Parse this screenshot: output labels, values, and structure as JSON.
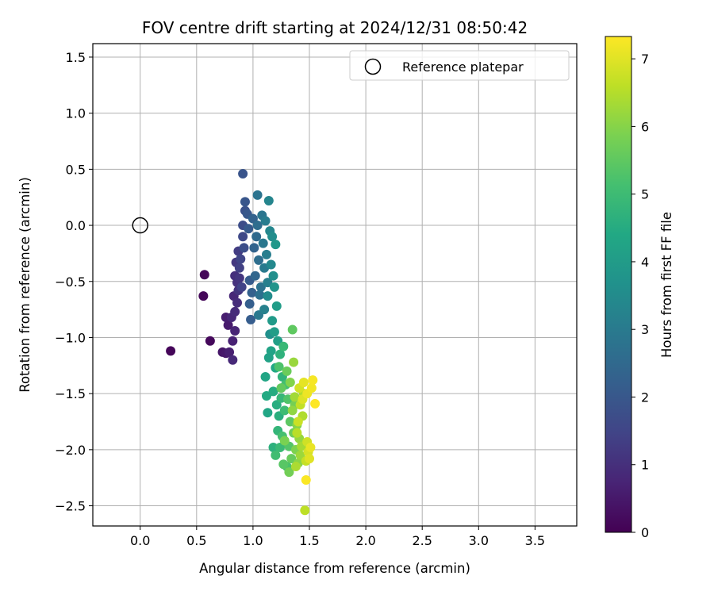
{
  "chart_data": {
    "type": "scatter",
    "title": "FOV centre drift starting at 2024/12/31 08:50:42",
    "xlabel": "Angular distance from reference (arcmin)",
    "ylabel": "Rotation from reference (arcmin)",
    "xlim": [
      -0.42,
      3.87
    ],
    "ylim": [
      -2.68,
      1.62
    ],
    "xticks": [
      0.0,
      0.5,
      1.0,
      1.5,
      2.0,
      2.5,
      3.0,
      3.5
    ],
    "xtick_labels": [
      "0.0",
      "0.5",
      "1.0",
      "1.5",
      "2.0",
      "2.5",
      "3.0",
      "3.5"
    ],
    "yticks": [
      1.5,
      1.0,
      0.5,
      0.0,
      -0.5,
      -1.0,
      -1.5,
      -2.0,
      -2.5
    ],
    "ytick_labels": [
      "1.5",
      "1.0",
      "0.5",
      "0.0",
      "−0.5",
      "−1.0",
      "−1.5",
      "−2.0",
      "−2.5"
    ],
    "grid": true,
    "legend": {
      "position": "top-right",
      "entries": [
        "Reference platepar"
      ]
    },
    "reference_point": {
      "x": 0.0,
      "y": 0.0,
      "marker": "open-circle"
    },
    "colorbar": {
      "label": "Hours from first FF file",
      "colormap": "viridis",
      "range": [
        0,
        7.33
      ],
      "ticks": [
        0,
        1,
        2,
        3,
        4,
        5,
        6,
        7
      ],
      "tick_labels": [
        "0",
        "1",
        "2",
        "3",
        "4",
        "5",
        "6",
        "7"
      ]
    },
    "points": [
      [
        0.27,
        -1.12,
        0.1
      ],
      [
        0.57,
        -0.44,
        0.1
      ],
      [
        0.56,
        -0.63,
        0.12
      ],
      [
        0.62,
        -1.03,
        0.15
      ],
      [
        0.73,
        -1.13,
        0.45
      ],
      [
        0.76,
        -1.14,
        0.5
      ],
      [
        0.78,
        -0.89,
        0.55
      ],
      [
        0.76,
        -0.82,
        0.6
      ],
      [
        0.79,
        -1.13,
        0.65
      ],
      [
        0.82,
        -1.03,
        0.7
      ],
      [
        0.84,
        -0.94,
        0.75
      ],
      [
        0.81,
        -0.82,
        0.8
      ],
      [
        0.83,
        -0.63,
        0.8
      ],
      [
        0.82,
        -1.2,
        0.85
      ],
      [
        0.84,
        -0.77,
        0.9
      ],
      [
        0.86,
        -0.69,
        0.95
      ],
      [
        0.84,
        -0.45,
        1.0
      ],
      [
        0.86,
        -0.51,
        1.05
      ],
      [
        0.87,
        -0.58,
        1.1
      ],
      [
        0.88,
        -0.47,
        1.15
      ],
      [
        0.85,
        -0.33,
        1.2
      ],
      [
        0.87,
        -0.23,
        1.3
      ],
      [
        0.88,
        -0.38,
        1.4
      ],
      [
        0.9,
        -0.55,
        1.45
      ],
      [
        0.89,
        -0.3,
        1.5
      ],
      [
        0.91,
        -0.1,
        1.6
      ],
      [
        0.91,
        0.0,
        1.7
      ],
      [
        0.92,
        -0.2,
        1.75
      ],
      [
        0.93,
        0.13,
        1.85
      ],
      [
        0.91,
        0.46,
        1.9
      ],
      [
        0.93,
        0.21,
        1.95
      ],
      [
        0.95,
        0.1,
        2.0
      ],
      [
        0.96,
        -0.03,
        2.05
      ],
      [
        0.97,
        -0.49,
        2.1
      ],
      [
        0.98,
        -0.84,
        2.15
      ],
      [
        0.97,
        -0.7,
        2.2
      ],
      [
        0.99,
        -0.6,
        2.25
      ],
      [
        1.0,
        0.06,
        2.3
      ],
      [
        1.01,
        -0.2,
        2.35
      ],
      [
        1.02,
        -0.45,
        2.4
      ],
      [
        1.03,
        -0.1,
        2.5
      ],
      [
        1.04,
        0.0,
        2.6
      ],
      [
        1.05,
        -0.31,
        2.65
      ],
      [
        1.06,
        -0.62,
        2.7
      ],
      [
        1.07,
        -0.55,
        2.75
      ],
      [
        1.04,
        0.27,
        2.8
      ],
      [
        1.08,
        0.09,
        2.85
      ],
      [
        1.09,
        -0.16,
        2.9
      ],
      [
        1.05,
        -0.8,
        2.95
      ],
      [
        1.1,
        -0.38,
        3.0
      ],
      [
        1.11,
        0.04,
        3.05
      ],
      [
        1.12,
        -0.26,
        3.1
      ],
      [
        1.13,
        -0.51,
        3.15
      ],
      [
        1.1,
        -0.75,
        3.2
      ],
      [
        1.14,
        0.22,
        3.3
      ],
      [
        1.15,
        -0.05,
        3.35
      ],
      [
        1.16,
        -0.35,
        3.4
      ],
      [
        1.13,
        -0.63,
        3.5
      ],
      [
        1.17,
        -0.1,
        3.55
      ],
      [
        1.18,
        -0.45,
        3.6
      ],
      [
        1.15,
        -0.97,
        3.65
      ],
      [
        1.19,
        -0.55,
        3.75
      ],
      [
        1.2,
        -0.17,
        3.85
      ],
      [
        1.17,
        -0.85,
        3.95
      ],
      [
        1.21,
        -0.72,
        4.0
      ],
      [
        1.19,
        -0.95,
        4.05
      ],
      [
        1.22,
        -1.03,
        4.1
      ],
      [
        1.14,
        -1.18,
        4.2
      ],
      [
        1.16,
        -1.12,
        4.25
      ],
      [
        1.11,
        -1.35,
        4.3
      ],
      [
        1.13,
        -1.67,
        4.35
      ],
      [
        1.2,
        -1.27,
        4.4
      ],
      [
        1.12,
        -1.52,
        4.45
      ],
      [
        1.18,
        -1.48,
        4.5
      ],
      [
        1.21,
        -1.6,
        4.55
      ],
      [
        1.23,
        -1.7,
        4.6
      ],
      [
        1.18,
        -1.98,
        4.65
      ],
      [
        1.24,
        -1.15,
        4.7
      ],
      [
        1.26,
        -1.35,
        4.75
      ],
      [
        1.22,
        -1.83,
        4.8
      ],
      [
        1.25,
        -1.54,
        4.85
      ],
      [
        1.27,
        -1.08,
        4.9
      ],
      [
        1.24,
        -1.98,
        4.95
      ],
      [
        1.28,
        -1.65,
        5.0
      ],
      [
        1.2,
        -2.05,
        5.05
      ],
      [
        1.29,
        -1.42,
        5.1
      ],
      [
        1.26,
        -1.88,
        5.15
      ],
      [
        1.3,
        -2.15,
        5.2
      ],
      [
        1.23,
        -1.26,
        5.25
      ],
      [
        1.31,
        -1.55,
        5.3
      ],
      [
        1.32,
        -1.97,
        5.35
      ],
      [
        1.27,
        -2.13,
        5.4
      ],
      [
        1.33,
        -1.75,
        5.45
      ],
      [
        1.35,
        -0.93,
        5.5
      ],
      [
        1.25,
        -1.45,
        5.55
      ],
      [
        1.34,
        -2.08,
        5.6
      ],
      [
        1.3,
        -1.3,
        5.65
      ],
      [
        1.36,
        -1.85,
        5.7
      ],
      [
        1.32,
        -2.2,
        5.75
      ],
      [
        1.37,
        -1.6,
        5.8
      ],
      [
        1.28,
        -1.92,
        5.85
      ],
      [
        1.38,
        -2.0,
        5.9
      ],
      [
        1.33,
        -1.4,
        5.95
      ],
      [
        1.39,
        -1.78,
        6.0
      ],
      [
        1.4,
        -2.12,
        6.05
      ],
      [
        1.35,
        -1.65,
        6.1
      ],
      [
        1.41,
        -1.9,
        6.15
      ],
      [
        1.36,
        -1.22,
        6.2
      ],
      [
        1.42,
        -2.05,
        6.25
      ],
      [
        1.37,
        -1.53,
        6.3
      ],
      [
        1.43,
        -1.97,
        6.35
      ],
      [
        1.38,
        -2.15,
        6.4
      ],
      [
        1.44,
        -1.7,
        6.45
      ],
      [
        1.45,
        -1.5,
        6.5
      ],
      [
        1.39,
        -1.85,
        6.55
      ],
      [
        1.46,
        -2.54,
        6.6
      ],
      [
        1.42,
        -1.6,
        6.65
      ],
      [
        1.47,
        -2.1,
        6.7
      ],
      [
        1.4,
        -1.75,
        6.75
      ],
      [
        1.48,
        -1.93,
        6.8
      ],
      [
        1.41,
        -1.45,
        6.85
      ],
      [
        1.49,
        -2.02,
        6.9
      ],
      [
        1.44,
        -1.55,
        6.95
      ],
      [
        1.5,
        -2.08,
        7.0
      ],
      [
        1.45,
        -1.4,
        7.05
      ],
      [
        1.51,
        -1.98,
        7.1
      ],
      [
        1.48,
        -1.5,
        7.15
      ],
      [
        1.52,
        -1.45,
        7.2
      ],
      [
        1.53,
        -1.38,
        7.25
      ],
      [
        1.47,
        -2.27,
        7.3
      ],
      [
        1.55,
        -1.59,
        7.33
      ]
    ]
  }
}
